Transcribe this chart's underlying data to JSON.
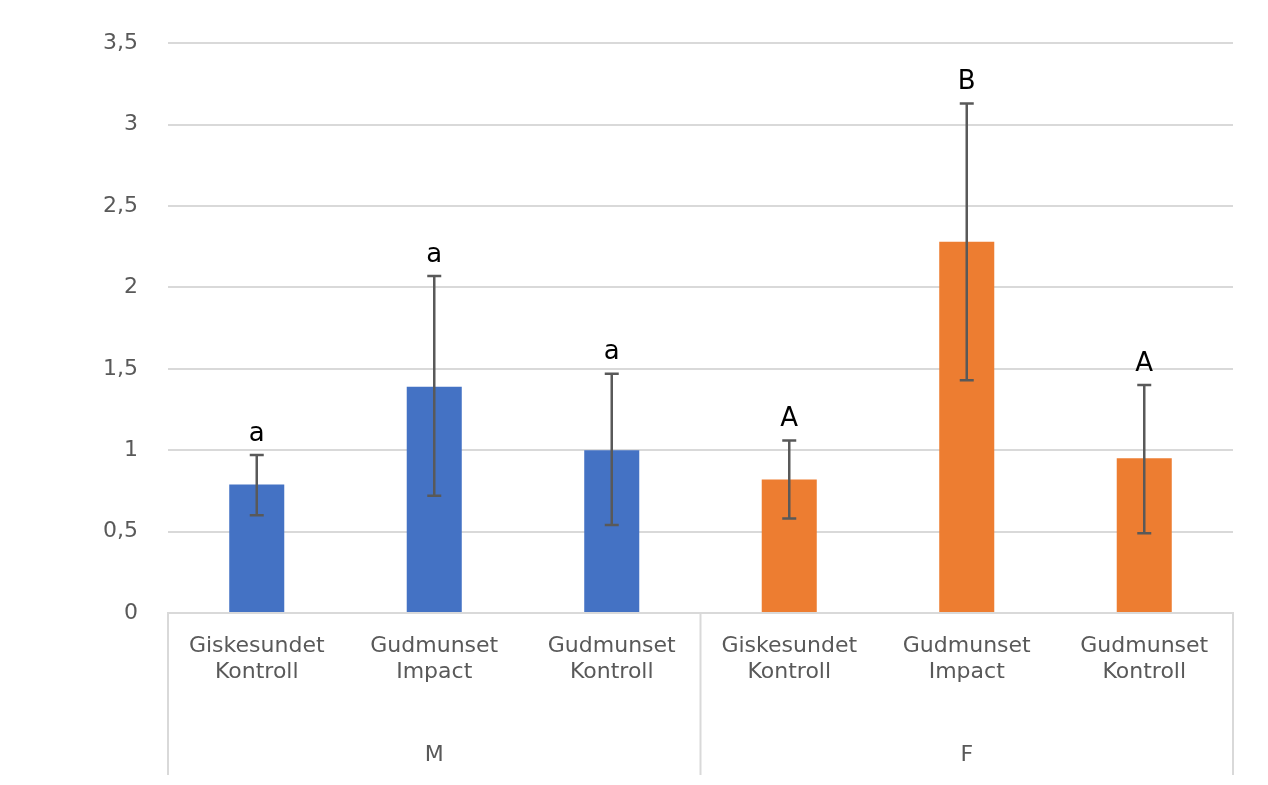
{
  "chart_data": {
    "type": "bar",
    "categories": [
      "Giskesundet Kontroll",
      "Gudmunset Impact",
      "Gudmunset Kontroll",
      "Giskesundet Kontroll",
      "Gudmunset Impact",
      "Gudmunset Kontroll"
    ],
    "values": [
      0.79,
      1.39,
      1.0,
      0.82,
      2.28,
      0.95
    ],
    "colors": [
      "#4472c4",
      "#4472c4",
      "#4472c4",
      "#ed7d31",
      "#ed7d31",
      "#ed7d31"
    ],
    "errors": [
      [
        0.6,
        0.97
      ],
      [
        0.72,
        2.07
      ],
      [
        0.54,
        1.47
      ],
      [
        0.58,
        1.06
      ],
      [
        1.43,
        3.13
      ],
      [
        0.49,
        1.4
      ]
    ],
    "ylim": [
      0,
      3.5
    ],
    "yticks": [
      0,
      {
        "value": 0.5,
        "label": "0,5"
      },
      1,
      {
        "value": 1.5,
        "label": "1,5"
      },
      2,
      {
        "value": 2.5,
        "label": "2,5"
      },
      3,
      {
        "value": 3.5,
        "label": "3,5"
      }
    ],
    "grid": "y",
    "legend": false,
    "annotations": [
      "a",
      "a",
      "a",
      "A",
      "B",
      "A",
      "M",
      "F"
    ]
  }
}
